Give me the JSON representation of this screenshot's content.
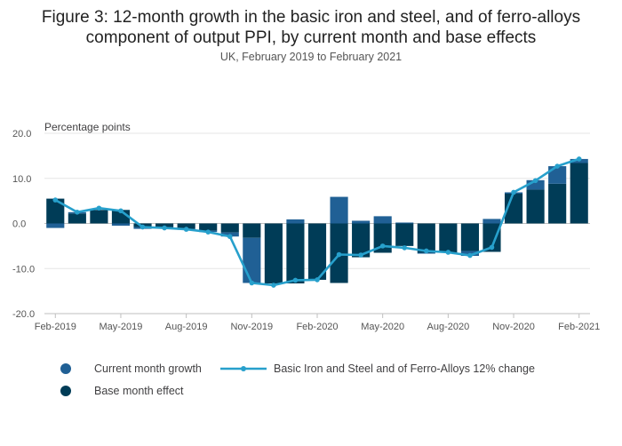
{
  "chart_data": {
    "type": "bar",
    "title_line1": "Figure 3: 12-month growth in the basic iron and steel, and of ferro-alloys",
    "title_line2": "component of output PPI, by current month and base effects",
    "subtitle": "UK, February 2019 to February 2021",
    "ylabel": "Percentage points",
    "ylim": [
      -20,
      20
    ],
    "yticks": [
      20,
      10,
      0,
      -10,
      -20
    ],
    "ytick_labels": [
      "20.0",
      "10.0",
      "0.0",
      "-10.0",
      "-20.0"
    ],
    "categories": [
      "Feb-2019",
      "Mar-2019",
      "Apr-2019",
      "May-2019",
      "Jun-2019",
      "Jul-2019",
      "Aug-2019",
      "Sep-2019",
      "Oct-2019",
      "Nov-2019",
      "Dec-2019",
      "Jan-2020",
      "Feb-2020",
      "Mar-2020",
      "Apr-2020",
      "May-2020",
      "Jun-2020",
      "Jul-2020",
      "Aug-2020",
      "Sep-2020",
      "Oct-2020",
      "Nov-2020",
      "Dec-2020",
      "Jan-2021",
      "Feb-2021"
    ],
    "xtick_labels": [
      {
        "index": 0,
        "label": "Feb-2019"
      },
      {
        "index": 3,
        "label": "May-2019"
      },
      {
        "index": 6,
        "label": "Aug-2019"
      },
      {
        "index": 9,
        "label": "Nov-2019"
      },
      {
        "index": 12,
        "label": "Feb-2020"
      },
      {
        "index": 15,
        "label": "May-2020"
      },
      {
        "index": 18,
        "label": "Aug-2020"
      },
      {
        "index": 21,
        "label": "Nov-2020"
      },
      {
        "index": 24,
        "label": "Feb-2021"
      }
    ],
    "series": [
      {
        "name": "Current month growth",
        "kind": "bar",
        "color": "#206095",
        "values": [
          -1.0,
          0.3,
          0.0,
          -0.5,
          -0.4,
          -0.3,
          -0.2,
          -0.3,
          -0.9,
          -10.0,
          0.0,
          0.9,
          0.0,
          5.9,
          0.6,
          1.6,
          0.2,
          -0.2,
          0.0,
          -1.1,
          1.0,
          0.3,
          2.1,
          3.9,
          0.9
        ]
      },
      {
        "name": "Base month effect",
        "kind": "bar",
        "color": "#003c57",
        "values": [
          5.5,
          2.2,
          3.0,
          3.0,
          -0.8,
          -0.8,
          -1.2,
          -1.6,
          -2.0,
          -3.2,
          -13.3,
          -13.3,
          -12.5,
          -13.2,
          -7.5,
          -6.5,
          -5.0,
          -6.5,
          -6.5,
          -6.1,
          -6.3,
          6.6,
          7.5,
          8.8,
          13.4
        ]
      },
      {
        "name": "Basic Iron and Steel and of Ferro-Alloys 12% change",
        "kind": "line",
        "color": "#27a0cc",
        "values": [
          5.2,
          2.5,
          3.4,
          2.8,
          -0.8,
          -1.0,
          -1.3,
          -1.9,
          -2.9,
          -13.2,
          -13.7,
          -12.6,
          -12.5,
          -6.9,
          -7.0,
          -5.0,
          -5.4,
          -6.1,
          -6.4,
          -7.1,
          -5.3,
          6.9,
          9.5,
          12.7,
          14.3
        ]
      }
    ],
    "legend": {
      "position": "bottom",
      "items": [
        {
          "label": "Current month growth",
          "marker": "circle",
          "color": "#206095"
        },
        {
          "label": "Basic Iron and Steel and of Ferro-Alloys 12% change",
          "marker": "line",
          "color": "#27a0cc"
        },
        {
          "label": "Base month effect",
          "marker": "circle",
          "color": "#003c57"
        }
      ]
    },
    "grid": true
  }
}
